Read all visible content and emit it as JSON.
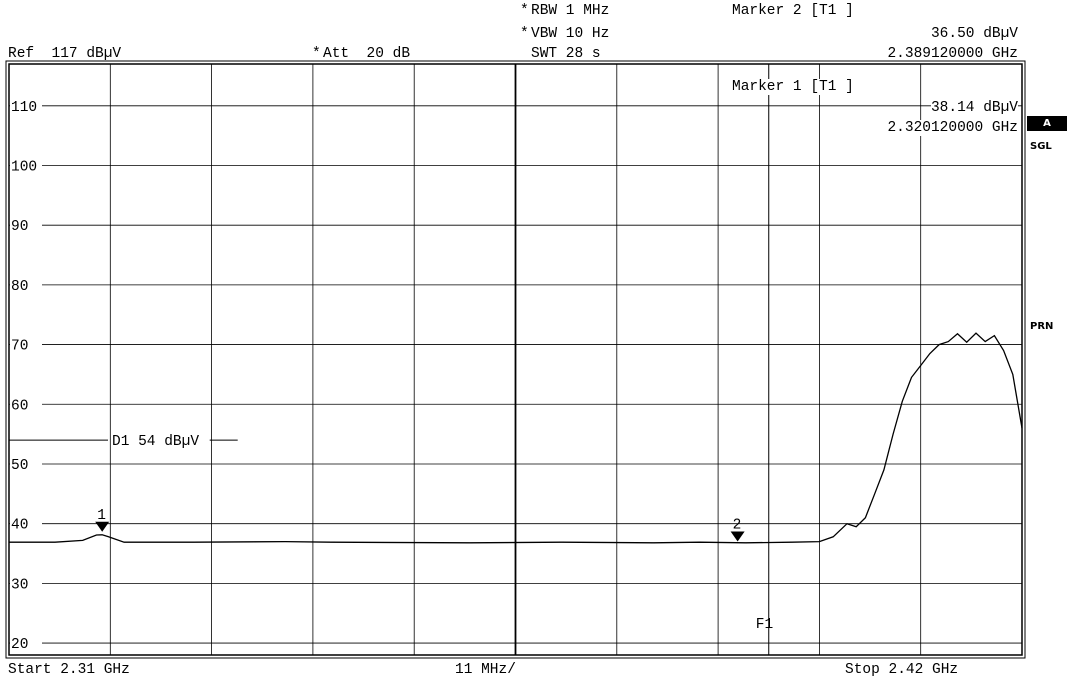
{
  "header": {
    "rbw": "RBW 1 MHz",
    "vbw": "VBW 10 Hz",
    "swt": "SWT 28 s",
    "ref": "Ref  117 dBµV",
    "att": "Att  20 dB",
    "star": "*",
    "marker2_title": "Marker 2 [T1 ]",
    "marker2_level": "36.50 dBµV",
    "marker2_freq": "2.389120000 GHz",
    "marker1_title": "Marker 1 [T1 ]",
    "marker1_level": "38.14 dBµV",
    "marker1_freq": "2.320120000 GHz"
  },
  "sidebar": {
    "trace_badge": "A",
    "sgl": "SGL",
    "prn": "PRN"
  },
  "footer": {
    "start": "Start 2.31 GHz",
    "span_div": "11 MHz/",
    "stop": "Stop 2.42 GHz"
  },
  "chart_data": {
    "type": "line",
    "x_unit": "GHz",
    "y_unit": "dBµV",
    "xlim": [
      2.31,
      2.42
    ],
    "ylim": [
      18,
      117
    ],
    "x_divisions": 10,
    "y_ticks": [
      110,
      100,
      90,
      80,
      70,
      60,
      50,
      40,
      30,
      20
    ],
    "grid": true,
    "display_line": {
      "label": "D1  54 dBµV",
      "value": 54
    },
    "markers": [
      {
        "label": "1",
        "freq": 2.32012,
        "level": 38.14
      },
      {
        "label": "2",
        "freq": 2.38912,
        "level": 36.5
      }
    ],
    "frequency_line": {
      "label": "F1",
      "freq": 2.3925
    },
    "series": [
      {
        "x": [
          2.31,
          2.315,
          2.318,
          2.3195,
          2.32012,
          2.3208,
          2.3225,
          2.33,
          2.34,
          2.345,
          2.36,
          2.37,
          2.38,
          2.385,
          2.39,
          2.395,
          2.398,
          2.3995,
          2.401,
          2.402,
          2.403,
          2.404,
          2.405,
          2.406,
          2.407,
          2.408,
          2.409,
          2.41,
          2.411,
          2.412,
          2.413,
          2.414,
          2.415,
          2.416,
          2.417,
          2.418,
          2.419,
          2.42
        ],
        "y": [
          36.9,
          36.9,
          37.2,
          38.1,
          38.14,
          37.8,
          36.9,
          36.9,
          37.0,
          36.9,
          36.8,
          36.9,
          36.8,
          36.9,
          36.8,
          36.9,
          37.0,
          37.8,
          40.0,
          39.5,
          41.0,
          45.0,
          49.0,
          55.0,
          60.5,
          64.5,
          66.5,
          68.5,
          70.0,
          70.5,
          71.8,
          70.4,
          71.9,
          70.5,
          71.5,
          69.0,
          65.0,
          56.0
        ]
      }
    ]
  }
}
